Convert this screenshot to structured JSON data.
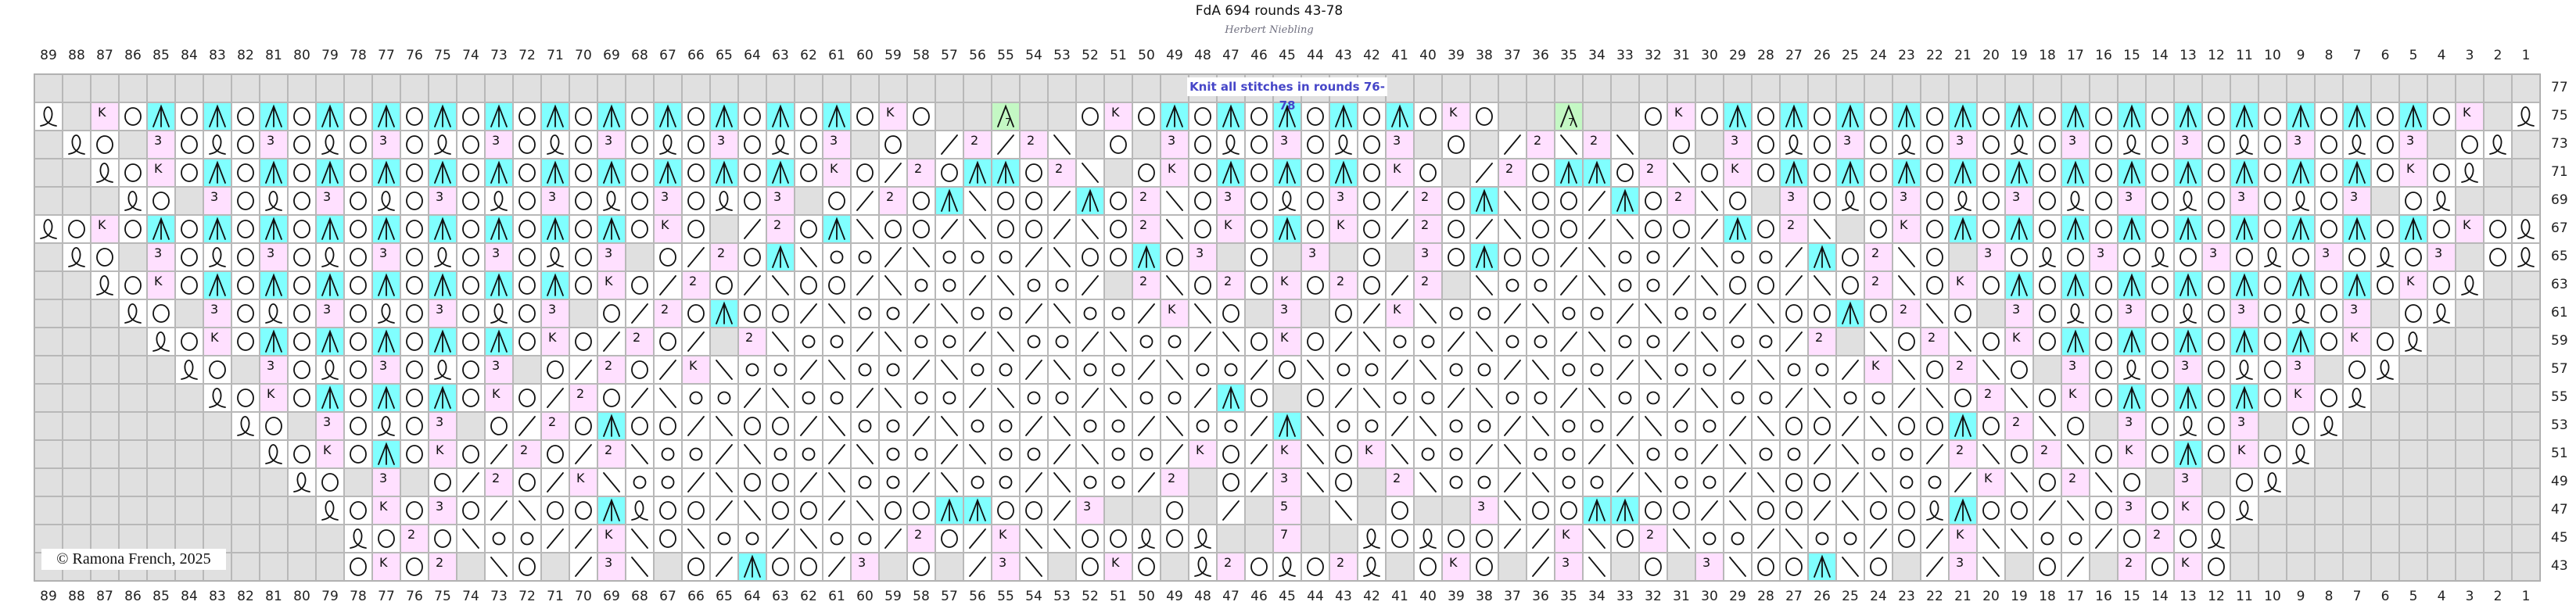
{
  "title": "FdA 694 rounds 43-78",
  "author": "Herbert Niebling",
  "note": "Knit all stitches in rounds 76-78",
  "copyright": "©  Ramona French, 2025",
  "colors": {
    "no_stitch": "#e0e0e0",
    "cdd": "#80ffff",
    "pink": "#ffe0ff",
    "green": "#c4f8c4",
    "note_text": "#4646c8"
  },
  "symbol_key": {
    ".": "no-stitch",
    "O": "yarn-over",
    "o": "small-yarn-over",
    "Q": "twisted-loop",
    "A": "centered-double-decrease",
    "G": "centered-decrease-7",
    "/": "right-decrease",
    "b": "left-decrease",
    "K": "K",
    "2": "2",
    "3": "3",
    "5": "5",
    "7": "7"
  },
  "columns": [
    89,
    88,
    87,
    86,
    85,
    84,
    83,
    82,
    81,
    80,
    79,
    78,
    77,
    76,
    75,
    74,
    73,
    72,
    71,
    70,
    69,
    68,
    67,
    66,
    65,
    64,
    63,
    62,
    61,
    60,
    59,
    58,
    57,
    56,
    55,
    54,
    53,
    52,
    51,
    50,
    49,
    48,
    47,
    46,
    45,
    44,
    43,
    42,
    41,
    40,
    39,
    38,
    37,
    36,
    35,
    34,
    33,
    32,
    31,
    30,
    29,
    28,
    27,
    26,
    25,
    24,
    23,
    22,
    21,
    20,
    19,
    18,
    17,
    16,
    15,
    14,
    13,
    12,
    11,
    10,
    9,
    8,
    7,
    6,
    5,
    4,
    3,
    2,
    1
  ],
  "rows": [
    {
      "round": "77",
      "cells": "............... ............... .............. .............. ................. .............."
    },
    {
      "round": "75",
      "cells": "Q.KOAOAOAOAOAOA OAOAOAOAOAOAOAO KO..G..OKOAOAO AOAOAOKO..G..O KOAOAOAOAOAOAOAOA OAOAOAOAOAOK.Q"
    },
    {
      "round": "73",
      "cells": ".QO.3OQO3OQO3OQ O3OQO3OQO3OQO3. O./2/2b.O.3OQO 3OQO3.O./2b2b. O.3OQO3OQO3OQO3OQ O3OQO3OQO3.OQ."
    },
    {
      "round": "71",
      "cells": "..QOKOAOAOAOAOA OAOAOAOAOAOAOKO /2OAAO2b.OKOAO AOAOKO./2OAAO2 bOKOAOAOAOAOAOAOA OAOAOAOAOKOQ.."
    },
    {
      "round": "69",
      "cells": "...QO.3OQO3OQO3 OQO3OQO3OQO3.O/ 2OAbOO/AO2bO3O QO3O/2OAbOO/AO 2bO.3OQO3OQO3OQO3 OQO3OQO3.OQ..."
    },
    {
      "round": "67",
      "cells": "QOKOAOAOAOAOAOA OAOAOAOKO./2OAb OO/bOO/bO2bOKO AOKO/2O/bOO/bO O/AO2b.OKOAOAOAOA OAOAOAOAOAOKOQ"
    },
    {
      "round": "65",
      "cells": ".QO.3OQO3OQO3OQ O3OQO3.O/2OAboo /booo/bOOAO3.O. 3.O.3OAOO/boo/ boo/AO2bO.3OQO3OQ O3OQO3OQO3.OQ."
    },
    {
      "round": "63",
      "cells": "..QOKOAOAOAOAOA OAOAOKO/2O/bOO/ boo/boo/.2bO2O KO2O/2.boo/boo /bOO/bO2bOKOAOAOA OAOAOAOAOKOQ.."
    },
    {
      "round": "61",
      "cells": "...QO.3OQO3OQO3 OQO3.O/2OAOO/bo o/boo/boo/KbO. 3.O/Kboo/boo/b oo/bOOAO2bO.3OQO3 OQO3OQO3.OQ..."
    },
    {
      "round": "59",
      "cells": "....QOKOAOAOAOA OAOKO/2O/.2boo/ boo/boo/boo/bO KO/boo/boo/boo /boo/2.bO2bOKOAOA OAOAOAOKOQ...."
    },
    {
      "round": "57",
      "cells": ".....QO.3OQO3OQ O3.O/2O/Kboo/bo o/boo/boo/boo/ Oboo/boo/boo/b oo/boo/KbO2bO.3OQ O3OQO3.OQ....."
    },
    {
      "round": "55",
      "cells": "......QOKOAOAOA OKO/2O/boo/boo/ boo/boo/boo/AO .O/boo/boo/boo /boo/boo/bO2bOKOA OAOAOKOQ......"
    },
    {
      "round": "53",
      "cells": ".......QO.3OQO3 .O/2OAOO/bOO/bo o/boo/boo/boo/ Aboo/boo/boo/b oo/bOO/bOOAO2bO.3 OQO3.OQ......."
    },
    {
      "round": "51",
      "cells": "........QOKOAOK O/2O/2boo/boo/b oo/boo/boo/KO/ KbOKboo/boo/bo o/boo/boo/2bO2bOK OAOKOQ........"
    },
    {
      "round": "49",
      "cells": ".........QO.3.O /2O/Kboo/bOO/bo o/boo/boo/2.O/ 3bO.2boo/boo/b oo/bOO/boo/KbO2bO .3.OQ........."
    },
    {
      "round": "47",
      "cells": "..........QOKO3 O/bOOAQOO/bOO/b OOAAOO/3..O./. 5.b.O..3bOOAAO O/bOO/bOOQAOO/bO3 OKOQ.........."
    },
    {
      "round": "45",
      "cells": "...........QO2O boo//KbOboo/boo /2O/KbbOOQOQ.. 7..QOQOO//KbO2 boo/boo/O/Kbboo/O 2OQ..........."
    },
    {
      "round": "43",
      "cells": "...........OKO2 .bO./3b.O/AOO/3 .O./3b.OKO.Q2O QO2Q.OKO./3b.O .3bOOAbO./3b.O/.2 OKO..........."
    }
  ]
}
